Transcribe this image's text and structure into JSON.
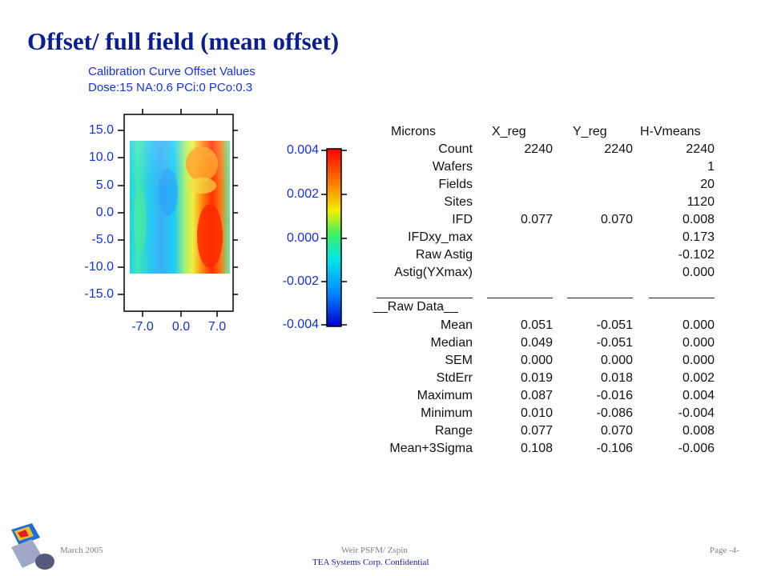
{
  "slide": {
    "title": "Offset/ full field (mean offset)"
  },
  "chart_data": {
    "type": "heatmap",
    "title": "Calibration Curve Offset Values",
    "subtitle": "Dose:15 NA:0.6 PCi:0 PCo:0.3",
    "y_ticks": [
      "15.0",
      "10.0",
      "5.0",
      "0.0",
      "-5.0",
      "-10.0",
      "-15.0"
    ],
    "x_ticks": [
      "-7.0",
      "0.0",
      "7.0"
    ],
    "ylim": [
      -15,
      15
    ],
    "xlim": [
      -7,
      7
    ],
    "colorbar": {
      "ticks": [
        "0.004",
        "0.002",
        "0.000",
        "-0.002",
        "-0.004"
      ],
      "range": [
        -0.004,
        0.004
      ]
    }
  },
  "stats": {
    "header": [
      "Microns",
      "X_reg",
      "Y_reg",
      "H-Vmeans"
    ],
    "rows": [
      {
        "label": "Count",
        "x": "2240",
        "y": "2240",
        "hv": "2240"
      },
      {
        "label": "Wafers",
        "x": "",
        "y": "",
        "hv": "1"
      },
      {
        "label": "Fields",
        "x": "",
        "y": "",
        "hv": "20"
      },
      {
        "label": "Sites",
        "x": "",
        "y": "",
        "hv": "1120"
      },
      {
        "label": "IFD",
        "x": "0.077",
        "y": "0.070",
        "hv": "0.008"
      },
      {
        "label": "IFDxy_max",
        "x": "",
        "y": "",
        "hv": "0.173"
      },
      {
        "label": "Raw Astig",
        "x": "",
        "y": "",
        "hv": "-0.102"
      },
      {
        "label": "Astig(YXmax)",
        "x": "",
        "y": "",
        "hv": "0.000"
      }
    ],
    "raw_label": "__Raw Data__",
    "raw_rows": [
      {
        "label": "Mean",
        "x": "0.051",
        "y": "-0.051",
        "hv": "0.000"
      },
      {
        "label": "Median",
        "x": "0.049",
        "y": "-0.051",
        "hv": "0.000"
      },
      {
        "label": "SEM",
        "x": "0.000",
        "y": "0.000",
        "hv": "0.000"
      },
      {
        "label": "StdErr",
        "x": "0.019",
        "y": "0.018",
        "hv": "0.002"
      },
      {
        "label": "Maximum",
        "x": "0.087",
        "y": "-0.016",
        "hv": "0.004"
      },
      {
        "label": "Minimum",
        "x": "0.010",
        "y": "-0.086",
        "hv": "-0.004"
      },
      {
        "label": "Range",
        "x": "0.077",
        "y": "0.070",
        "hv": "0.008"
      },
      {
        "label": "Mean+3Sigma",
        "x": "0.108",
        "y": "-0.106",
        "hv": "-0.006"
      }
    ]
  },
  "footer": {
    "date": "March 2005",
    "center": "Weir PSFM/ Zspin",
    "confidential": "TEA Systems Corp. Confidential",
    "page": "Page -4-"
  },
  "colors": {
    "title": "#0a1f8f",
    "axis_text": "#1530e8"
  }
}
